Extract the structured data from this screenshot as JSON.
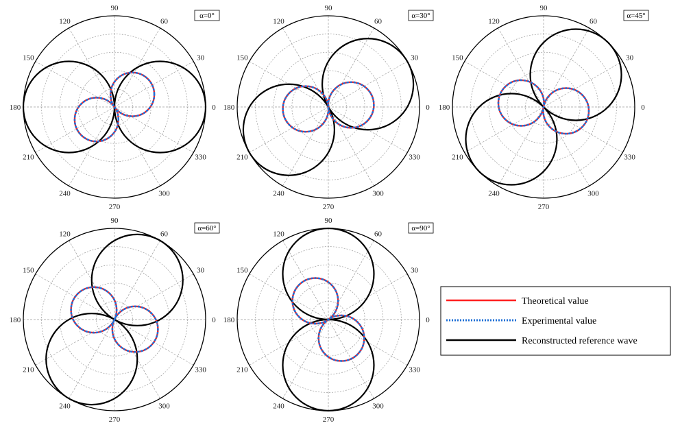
{
  "chart_data": {
    "type": "polar",
    "angle_tick_labels": [
      "0",
      "30",
      "60",
      "90",
      "120",
      "150",
      "180",
      "210",
      "240",
      "270",
      "300",
      "330"
    ],
    "radial_rings": 5,
    "grid": true,
    "legend": {
      "placement": "right, beside the fifth panel",
      "entries": [
        {
          "label": "Theoretical value",
          "color": "#ff2020",
          "style": "solid"
        },
        {
          "label": "Experimental value",
          "color": "#1f6fd6",
          "style": "dotted"
        },
        {
          "label": "Reconstructed reference wave",
          "color": "#000000",
          "style": "solid"
        }
      ]
    },
    "panels": [
      {
        "label": "α=0°",
        "series": [
          {
            "name": "Theoretical value",
            "circles": [
              {
                "dir_deg": 35,
                "diameter": 0.48
              },
              {
                "dir_deg": 215,
                "diameter": 0.48
              }
            ]
          },
          {
            "name": "Experimental value",
            "circles": [
              {
                "dir_deg": 35,
                "diameter": 0.48
              },
              {
                "dir_deg": 215,
                "diameter": 0.48
              }
            ]
          },
          {
            "name": "Reconstructed reference wave",
            "circles": [
              {
                "dir_deg": 0,
                "diameter": 1.0
              },
              {
                "dir_deg": 180,
                "diameter": 1.0
              }
            ]
          }
        ]
      },
      {
        "label": "α=30°",
        "series": [
          {
            "name": "Theoretical value",
            "circles": [
              {
                "dir_deg": 5,
                "diameter": 0.5
              },
              {
                "dir_deg": 185,
                "diameter": 0.5
              }
            ]
          },
          {
            "name": "Experimental value",
            "circles": [
              {
                "dir_deg": 5,
                "diameter": 0.5
              },
              {
                "dir_deg": 185,
                "diameter": 0.5
              }
            ]
          },
          {
            "name": "Reconstructed reference wave",
            "circles": [
              {
                "dir_deg": 30,
                "diameter": 1.0
              },
              {
                "dir_deg": 210,
                "diameter": 1.0
              }
            ]
          }
        ]
      },
      {
        "label": "α=45°",
        "series": [
          {
            "name": "Theoretical value",
            "circles": [
              {
                "dir_deg": -10,
                "diameter": 0.5
              },
              {
                "dir_deg": 170,
                "diameter": 0.5
              }
            ]
          },
          {
            "name": "Experimental value",
            "circles": [
              {
                "dir_deg": -10,
                "diameter": 0.5
              },
              {
                "dir_deg": 170,
                "diameter": 0.5
              }
            ]
          },
          {
            "name": "Reconstructed reference wave",
            "circles": [
              {
                "dir_deg": 45,
                "diameter": 1.0
              },
              {
                "dir_deg": 225,
                "diameter": 1.0
              }
            ]
          }
        ]
      },
      {
        "label": "α=60°",
        "series": [
          {
            "name": "Theoretical value",
            "circles": [
              {
                "dir_deg": -25,
                "diameter": 0.5
              },
              {
                "dir_deg": 155,
                "diameter": 0.5
              }
            ]
          },
          {
            "name": "Experimental value",
            "circles": [
              {
                "dir_deg": -25,
                "diameter": 0.5
              },
              {
                "dir_deg": 155,
                "diameter": 0.5
              }
            ]
          },
          {
            "name": "Reconstructed reference wave",
            "circles": [
              {
                "dir_deg": 60,
                "diameter": 1.0
              },
              {
                "dir_deg": 240,
                "diameter": 1.0
              }
            ]
          }
        ]
      },
      {
        "label": "α=90°",
        "series": [
          {
            "name": "Theoretical value",
            "circles": [
              {
                "dir_deg": -55,
                "diameter": 0.5
              },
              {
                "dir_deg": 125,
                "diameter": 0.5
              }
            ]
          },
          {
            "name": "Experimental value",
            "circles": [
              {
                "dir_deg": -55,
                "diameter": 0.5
              },
              {
                "dir_deg": 125,
                "diameter": 0.5
              }
            ]
          },
          {
            "name": "Reconstructed reference wave",
            "circles": [
              {
                "dir_deg": 90,
                "diameter": 1.0
              },
              {
                "dir_deg": 270,
                "diameter": 1.0
              }
            ]
          }
        ]
      }
    ]
  }
}
